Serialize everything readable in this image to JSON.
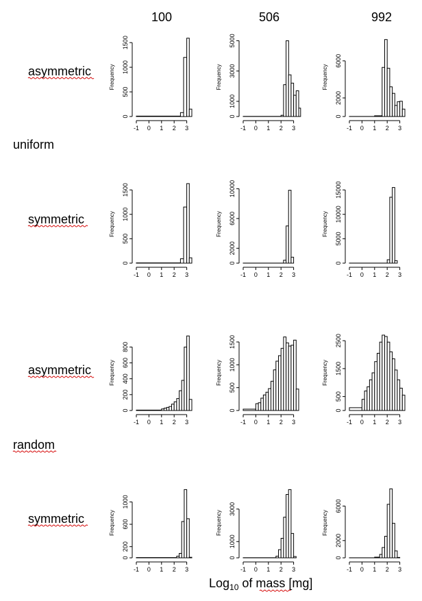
{
  "figure": {
    "column_headers": [
      "100",
      "506",
      "992"
    ],
    "group_labels": [
      "uniform",
      "random"
    ],
    "row_labels": [
      "asymmetric",
      "symmetric",
      "asymmetric",
      "symmetric"
    ],
    "xlabel_main": "Log",
    "xlabel_sub": "10",
    "xlabel_rest": " of mass [mg]",
    "colors": {
      "bars": "#ffffff",
      "stroke": "#000000",
      "spellcheck_underline": "#d40000"
    }
  },
  "chart_data": [
    {
      "type": "bar",
      "row_label": "asymmetric",
      "group": "uniform",
      "column": "100",
      "ylabel": "Frequency",
      "x_ticks": [
        -1,
        0,
        1,
        2,
        3
      ],
      "y_ticks": [
        0,
        500,
        1000,
        1500
      ],
      "ylim": [
        0,
        1600
      ],
      "bins": [
        [
          -1.0,
          2.5,
          8
        ],
        [
          2.5,
          2.75,
          80
        ],
        [
          2.75,
          3.0,
          1200
        ],
        [
          3.0,
          3.2,
          1590
        ],
        [
          3.2,
          3.4,
          150
        ]
      ]
    },
    {
      "type": "bar",
      "row_label": "asymmetric",
      "group": "uniform",
      "column": "506",
      "ylabel": "Frequency",
      "x_ticks": [
        -1,
        0,
        1,
        2,
        3
      ],
      "y_ticks": [
        0,
        1000,
        3000,
        5000
      ],
      "ylim": [
        0,
        5200
      ],
      "bins": [
        [
          -1.0,
          2.0,
          10
        ],
        [
          2.0,
          2.2,
          80
        ],
        [
          2.2,
          2.4,
          2100
        ],
        [
          2.4,
          2.6,
          5000
        ],
        [
          2.6,
          2.8,
          2750
        ],
        [
          2.8,
          3.0,
          2200
        ],
        [
          3.0,
          3.2,
          1400
        ],
        [
          3.2,
          3.4,
          1700
        ],
        [
          3.4,
          3.55,
          550
        ]
      ]
    },
    {
      "type": "bar",
      "row_label": "asymmetric",
      "group": "uniform",
      "column": "992",
      "ylabel": "Frequency",
      "x_ticks": [
        -1,
        0,
        1,
        2,
        3
      ],
      "y_ticks": [
        0,
        2000,
        6000
      ],
      "ylim": [
        0,
        8500
      ],
      "bins": [
        [
          -1.0,
          1.0,
          10
        ],
        [
          1.0,
          1.6,
          80
        ],
        [
          1.6,
          1.8,
          5300
        ],
        [
          1.8,
          2.0,
          8300
        ],
        [
          2.0,
          2.2,
          5200
        ],
        [
          2.2,
          2.4,
          3200
        ],
        [
          2.4,
          2.6,
          2500
        ],
        [
          2.6,
          2.8,
          1200
        ],
        [
          2.8,
          3.0,
          1600
        ],
        [
          3.0,
          3.2,
          1650
        ],
        [
          3.2,
          3.4,
          800
        ]
      ]
    },
    {
      "type": "bar",
      "row_label": "symmetric",
      "group": "uniform",
      "column": "100",
      "ylabel": "Frequency",
      "x_ticks": [
        -1,
        0,
        1,
        2,
        3
      ],
      "y_ticks": [
        0,
        500,
        1000,
        1500
      ],
      "ylim": [
        0,
        1600
      ],
      "bins": [
        [
          -1.0,
          2.5,
          5
        ],
        [
          2.5,
          2.75,
          90
        ],
        [
          2.75,
          3.0,
          1150
        ],
        [
          3.0,
          3.2,
          1630
        ],
        [
          3.2,
          3.4,
          110
        ]
      ]
    },
    {
      "type": "bar",
      "row_label": "symmetric",
      "group": "uniform",
      "column": "506",
      "ylabel": "Frequency",
      "x_ticks": [
        -1,
        0,
        1,
        2,
        3
      ],
      "y_ticks": [
        0,
        2000,
        6000,
        10000
      ],
      "ylim": [
        0,
        10500
      ],
      "bins": [
        [
          -1.0,
          2.2,
          10
        ],
        [
          2.2,
          2.4,
          400
        ],
        [
          2.4,
          2.6,
          5000
        ],
        [
          2.6,
          2.8,
          9800
        ],
        [
          2.8,
          3.0,
          800
        ]
      ]
    },
    {
      "type": "bar",
      "row_label": "symmetric",
      "group": "uniform",
      "column": "992",
      "ylabel": "Frequency",
      "x_ticks": [
        -1,
        0,
        1,
        2,
        3
      ],
      "y_ticks": [
        0,
        5000,
        10000,
        15000
      ],
      "ylim": [
        0,
        16000
      ],
      "bins": [
        [
          -1.0,
          2.0,
          10
        ],
        [
          2.0,
          2.2,
          700
        ],
        [
          2.2,
          2.4,
          13500
        ],
        [
          2.4,
          2.6,
          15500
        ],
        [
          2.6,
          2.8,
          500
        ]
      ]
    },
    {
      "type": "bar",
      "row_label": "asymmetric",
      "group": "random",
      "column": "100",
      "ylabel": "Frequency",
      "x_ticks": [
        -1,
        0,
        1,
        2,
        3
      ],
      "y_ticks": [
        0,
        200,
        400,
        600,
        800
      ],
      "ylim": [
        0,
        950
      ],
      "bins": [
        [
          -1.0,
          1.0,
          5
        ],
        [
          1.0,
          1.2,
          20
        ],
        [
          1.2,
          1.4,
          30
        ],
        [
          1.4,
          1.6,
          40
        ],
        [
          1.6,
          1.8,
          50
        ],
        [
          1.8,
          2.0,
          80
        ],
        [
          2.0,
          2.2,
          110
        ],
        [
          2.2,
          2.4,
          150
        ],
        [
          2.4,
          2.6,
          250
        ],
        [
          2.6,
          2.8,
          380
        ],
        [
          2.8,
          3.0,
          800
        ],
        [
          3.0,
          3.2,
          940
        ],
        [
          3.2,
          3.4,
          140
        ]
      ]
    },
    {
      "type": "bar",
      "row_label": "asymmetric",
      "group": "random",
      "column": "506",
      "ylabel": "Frequency",
      "x_ticks": [
        -1,
        0,
        1,
        2,
        3
      ],
      "y_ticks": [
        0,
        500,
        1000,
        1500
      ],
      "ylim": [
        0,
        1650
      ],
      "bins": [
        [
          -1.0,
          0.0,
          30
        ],
        [
          0.0,
          0.2,
          150
        ],
        [
          0.2,
          0.4,
          170
        ],
        [
          0.4,
          0.6,
          270
        ],
        [
          0.6,
          0.8,
          340
        ],
        [
          0.8,
          1.0,
          400
        ],
        [
          1.0,
          1.2,
          480
        ],
        [
          1.2,
          1.4,
          640
        ],
        [
          1.4,
          1.6,
          890
        ],
        [
          1.6,
          1.8,
          1080
        ],
        [
          1.8,
          2.0,
          1200
        ],
        [
          2.0,
          2.2,
          1360
        ],
        [
          2.2,
          2.4,
          1610
        ],
        [
          2.4,
          2.6,
          1480
        ],
        [
          2.6,
          2.8,
          1410
        ],
        [
          2.8,
          3.0,
          1430
        ],
        [
          3.0,
          3.2,
          1540
        ],
        [
          3.2,
          3.4,
          470
        ]
      ]
    },
    {
      "type": "bar",
      "row_label": "asymmetric",
      "group": "random",
      "column": "992",
      "ylabel": "Frequency",
      "x_ticks": [
        -1,
        0,
        1,
        2,
        3
      ],
      "y_ticks": [
        0,
        500,
        1500,
        2500
      ],
      "ylim": [
        0,
        2700
      ],
      "bins": [
        [
          -1.0,
          0.0,
          100
        ],
        [
          0.0,
          0.2,
          400
        ],
        [
          0.2,
          0.4,
          700
        ],
        [
          0.4,
          0.6,
          850
        ],
        [
          0.6,
          0.8,
          1100
        ],
        [
          0.8,
          1.0,
          1350
        ],
        [
          1.0,
          1.2,
          1750
        ],
        [
          1.2,
          1.4,
          2050
        ],
        [
          1.4,
          1.6,
          2450
        ],
        [
          1.6,
          1.8,
          2700
        ],
        [
          1.8,
          2.0,
          2650
        ],
        [
          2.0,
          2.2,
          2450
        ],
        [
          2.2,
          2.4,
          2100
        ],
        [
          2.4,
          2.6,
          1850
        ],
        [
          2.6,
          2.8,
          1450
        ],
        [
          2.8,
          3.0,
          1100
        ],
        [
          3.0,
          3.2,
          800
        ],
        [
          3.2,
          3.4,
          550
        ]
      ]
    },
    {
      "type": "bar",
      "row_label": "symmetric",
      "group": "random",
      "column": "100",
      "ylabel": "Frequency",
      "x_ticks": [
        -1,
        0,
        1,
        2,
        3
      ],
      "y_ticks": [
        0,
        200,
        600,
        1000
      ],
      "ylim": [
        0,
        1250
      ],
      "bins": [
        [
          -1.0,
          2.2,
          5
        ],
        [
          2.2,
          2.4,
          30
        ],
        [
          2.4,
          2.6,
          80
        ],
        [
          2.6,
          2.8,
          650
        ],
        [
          2.8,
          3.0,
          1220
        ],
        [
          3.0,
          3.2,
          700
        ],
        [
          3.2,
          3.4,
          10
        ]
      ]
    },
    {
      "type": "bar",
      "row_label": "symmetric",
      "group": "random",
      "column": "506",
      "ylabel": "Frequency",
      "x_ticks": [
        -1,
        0,
        1,
        2,
        3
      ],
      "y_ticks": [
        0,
        1000,
        3000
      ],
      "ylim": [
        0,
        4300
      ],
      "bins": [
        [
          -1.0,
          1.6,
          10
        ],
        [
          1.6,
          1.8,
          100
        ],
        [
          1.8,
          2.0,
          500
        ],
        [
          2.0,
          2.2,
          1200
        ],
        [
          2.2,
          2.4,
          2500
        ],
        [
          2.4,
          2.6,
          3900
        ],
        [
          2.6,
          2.8,
          4200
        ],
        [
          2.8,
          3.0,
          1500
        ],
        [
          3.0,
          3.2,
          80
        ]
      ]
    },
    {
      "type": "bar",
      "row_label": "symmetric",
      "group": "random",
      "column": "992",
      "ylabel": "Frequency",
      "x_ticks": [
        -1,
        0,
        1,
        2,
        3
      ],
      "y_ticks": [
        0,
        2000,
        6000
      ],
      "ylim": [
        0,
        8100
      ],
      "bins": [
        [
          -1.0,
          1.0,
          10
        ],
        [
          1.0,
          1.4,
          80
        ],
        [
          1.4,
          1.6,
          400
        ],
        [
          1.6,
          1.8,
          1200
        ],
        [
          1.8,
          2.0,
          2500
        ],
        [
          2.0,
          2.2,
          6200
        ],
        [
          2.2,
          2.4,
          8000
        ],
        [
          2.4,
          2.6,
          4000
        ],
        [
          2.6,
          2.8,
          800
        ],
        [
          2.8,
          3.0,
          50
        ]
      ]
    }
  ]
}
